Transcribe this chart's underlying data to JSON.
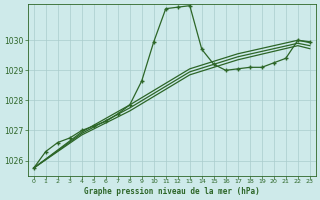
{
  "title": "Graphe pression niveau de la mer (hPa)",
  "background_color": "#ceeaea",
  "grid_color": "#aacccc",
  "line_color": "#2d6628",
  "xlim": [
    -0.5,
    23.5
  ],
  "ylim": [
    1025.5,
    1031.2
  ],
  "xtick_labels": [
    "0",
    "1",
    "2",
    "3",
    "4",
    "5",
    "6",
    "7",
    "8",
    "9",
    "10",
    "11",
    "12",
    "13",
    "14",
    "15",
    "16",
    "17",
    "18",
    "19",
    "20",
    "21",
    "22",
    "23"
  ],
  "xticks": [
    0,
    1,
    2,
    3,
    4,
    5,
    6,
    7,
    8,
    9,
    10,
    11,
    12,
    13,
    14,
    15,
    16,
    17,
    18,
    19,
    20,
    21,
    22,
    23
  ],
  "yticks": [
    1026,
    1027,
    1028,
    1029,
    1030
  ],
  "series_main": [
    [
      0,
      1025.75
    ],
    [
      1,
      1026.3
    ],
    [
      2,
      1026.6
    ],
    [
      3,
      1026.75
    ],
    [
      4,
      1027.0
    ],
    [
      5,
      1027.15
    ],
    [
      6,
      1027.3
    ],
    [
      7,
      1027.55
    ],
    [
      8,
      1027.85
    ],
    [
      9,
      1028.65
    ],
    [
      10,
      1029.95
    ],
    [
      11,
      1031.05
    ],
    [
      12,
      1031.1
    ],
    [
      13,
      1031.15
    ],
    [
      14,
      1029.7
    ],
    [
      15,
      1029.2
    ],
    [
      16,
      1029.0
    ],
    [
      17,
      1029.05
    ],
    [
      18,
      1029.1
    ],
    [
      19,
      1029.1
    ],
    [
      20,
      1029.25
    ],
    [
      21,
      1029.4
    ],
    [
      22,
      1030.0
    ],
    [
      23,
      1029.95
    ]
  ],
  "series_ref1": [
    [
      0,
      1025.75
    ],
    [
      4,
      1026.95
    ],
    [
      8,
      1027.85
    ],
    [
      13,
      1029.05
    ],
    [
      17,
      1029.55
    ],
    [
      22,
      1030.0
    ],
    [
      23,
      1029.92
    ]
  ],
  "series_ref2": [
    [
      0,
      1025.75
    ],
    [
      4,
      1026.9
    ],
    [
      8,
      1027.75
    ],
    [
      13,
      1028.95
    ],
    [
      17,
      1029.45
    ],
    [
      22,
      1029.9
    ],
    [
      23,
      1029.82
    ]
  ],
  "series_ref3": [
    [
      0,
      1025.75
    ],
    [
      4,
      1026.85
    ],
    [
      8,
      1027.65
    ],
    [
      13,
      1028.85
    ],
    [
      17,
      1029.35
    ],
    [
      22,
      1029.82
    ],
    [
      23,
      1029.72
    ]
  ]
}
